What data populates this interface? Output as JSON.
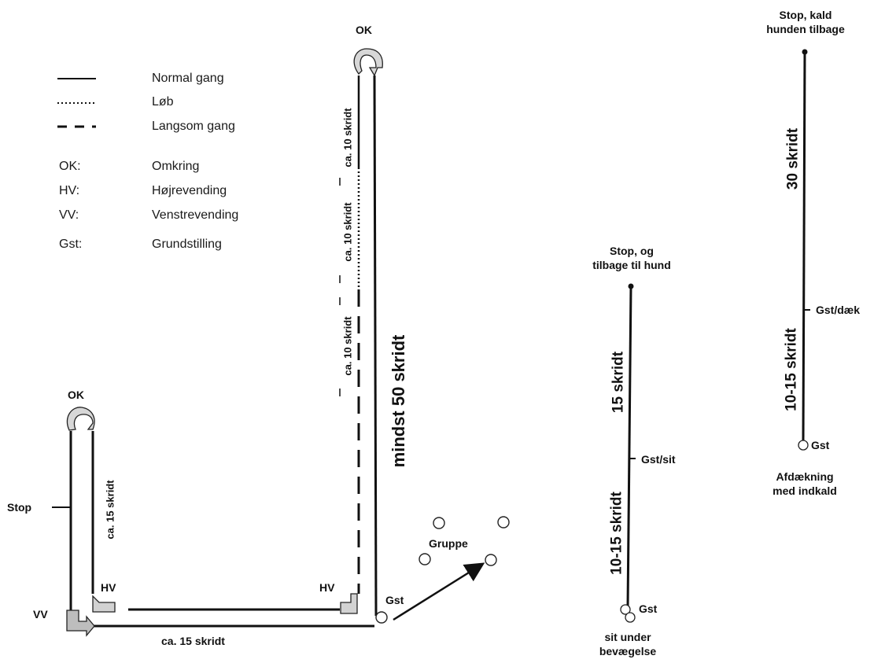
{
  "legend": {
    "normal": "Normal gang",
    "run": "Løb",
    "slow": "Langsom gang",
    "ok_key": "OK:",
    "ok_val": "Omkring",
    "hv_key": "HV:",
    "hv_val": "Højrevending",
    "vv_key": "VV:",
    "vv_val": "Venstrevending",
    "gst_key": "Gst:",
    "gst_val": "Grundstilling"
  },
  "course": {
    "ok_top": "OK",
    "ok_left": "OK",
    "ca10_a": "ca. 10 skridt",
    "ca10_b": "ca. 10 skridt",
    "ca10_c": "ca. 10 skridt",
    "mindst50": "mindst 50 skridt",
    "ca15_vert": "ca. 15 skridt",
    "stop": "Stop",
    "hv_left": "HV",
    "hv_right": "HV",
    "vv": "VV",
    "gst": "Gst",
    "ca15_horiz": "ca. 15 skridt",
    "gruppe": "Gruppe"
  },
  "sit_exercise": {
    "top": "Stop, og\ntilbage til hund",
    "len_upper": "15 skridt",
    "mid": "Gst/sit",
    "len_lower": "10-15 skridt",
    "gst": "Gst",
    "bottom": "sit under\nbevægelse"
  },
  "down_exercise": {
    "top": "Stop, kald\nhunden tilbage",
    "len_upper": "30 skridt",
    "mid": "Gst/dæk",
    "len_lower": "10-15 skridt",
    "gst": "Gst",
    "bottom": "Afdækning\nmed indkald"
  }
}
